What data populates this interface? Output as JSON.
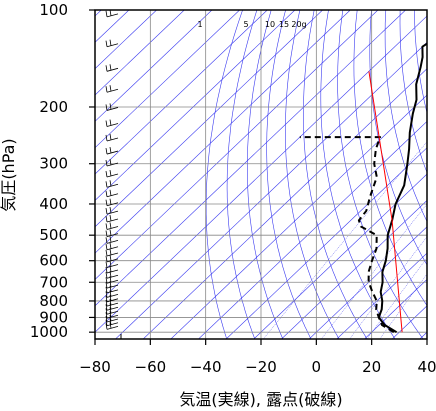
{
  "chart_data": {
    "type": "line",
    "title": "",
    "xlabel": "気温(実線), 露点(破線)",
    "ylabel": "気圧(hPa)",
    "xlim": [
      -80,
      40
    ],
    "ylim": [
      1050,
      100
    ],
    "y_scale": "log",
    "grid": true,
    "x_ticks": [
      -80,
      -60,
      -40,
      -20,
      0,
      20,
      40
    ],
    "x_tick_labels": [
      "−80",
      "−60",
      "−40",
      "−20",
      "0",
      "20",
      "40"
    ],
    "y_ticks": [
      100,
      200,
      300,
      400,
      500,
      600,
      700,
      800,
      900,
      1000
    ],
    "y_tick_labels": [
      "100",
      "200",
      "300",
      "400",
      "500",
      "600",
      "700",
      "800",
      "900",
      "1000"
    ],
    "mixing_ratio_labels": [
      "1",
      "5",
      "10",
      "15",
      "20g"
    ],
    "series": [
      {
        "style": "solid",
        "color": "#000000",
        "points": [
          [
            29,
            1000
          ],
          [
            22,
            950
          ],
          [
            17,
            900
          ],
          [
            15,
            850
          ],
          [
            12,
            800
          ],
          [
            8,
            750
          ],
          [
            5,
            700
          ],
          [
            1,
            650
          ],
          [
            -2,
            600
          ],
          [
            -6,
            550
          ],
          [
            -11,
            500
          ],
          [
            -15,
            450
          ],
          [
            -20,
            400
          ],
          [
            -24,
            350
          ],
          [
            -31,
            300
          ],
          [
            -36,
            270
          ],
          [
            -42,
            240
          ],
          [
            -48,
            210
          ],
          [
            -52,
            190
          ],
          [
            -58,
            170
          ],
          [
            -63,
            150
          ],
          [
            -66,
            140
          ],
          [
            -70,
            130
          ],
          [
            -69,
            125
          ],
          [
            -67,
            120
          ],
          [
            -71,
            112
          ],
          [
            -73,
            105
          ],
          [
            -74,
            100
          ]
        ]
      },
      {
        "style": "dashed",
        "color": "#000000",
        "points": [
          [
            28,
            1000
          ],
          [
            21,
            950
          ],
          [
            17,
            900
          ],
          [
            13,
            850
          ],
          [
            10,
            800
          ],
          [
            5,
            750
          ],
          [
            0,
            700
          ],
          [
            -4,
            650
          ],
          [
            -7,
            600
          ],
          [
            -10,
            550
          ],
          [
            -15,
            500
          ],
          [
            -24,
            470
          ],
          [
            -27,
            450
          ],
          [
            -28,
            420
          ],
          [
            -32,
            380
          ],
          [
            -37,
            330
          ],
          [
            -43,
            300
          ],
          [
            -48,
            270
          ],
          [
            -51,
            248
          ],
          [
            -80,
            248
          ]
        ]
      },
      {
        "style": "solid",
        "color": "#ff0000",
        "points": [
          [
            31,
            1000
          ],
          [
            -15,
            450
          ],
          [
            -80,
            155
          ]
        ]
      }
    ]
  }
}
